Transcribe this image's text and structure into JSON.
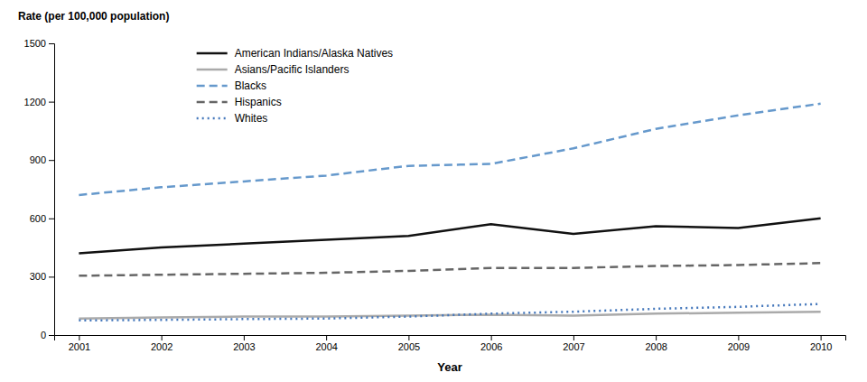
{
  "chart_data": {
    "type": "line",
    "xlabel": "Year",
    "ylabel": "Rate (per 100,000 population)",
    "x": [
      2001,
      2002,
      2003,
      2004,
      2005,
      2006,
      2007,
      2008,
      2009,
      2010
    ],
    "xlim": [
      2000.7,
      2010.3
    ],
    "xticks": [
      2001,
      2002,
      2003,
      2004,
      2005,
      2006,
      2007,
      2008,
      2009,
      2010
    ],
    "ylim": [
      0,
      1500
    ],
    "yticks": [
      0,
      300,
      600,
      900,
      1200,
      1500
    ],
    "grid": false,
    "legend": "upper left",
    "series": [
      {
        "name": "American Indians/Alaska Natives",
        "color": "#111111",
        "line_style": "solid",
        "values": [
          420,
          450,
          470,
          490,
          510,
          570,
          520,
          560,
          550,
          600
        ]
      },
      {
        "name": "Asians/Pacific Islanders",
        "color": "#aaaaaa",
        "line_style": "solid",
        "values": [
          85,
          90,
          95,
          95,
          100,
          105,
          100,
          110,
          115,
          120
        ]
      },
      {
        "name": "Blacks",
        "color": "#6699cc",
        "line_style": "dashed",
        "values": [
          720,
          760,
          790,
          820,
          870,
          880,
          960,
          1060,
          1130,
          1190
        ]
      },
      {
        "name": "Hispanics",
        "color": "#666666",
        "line_style": "dashed",
        "values": [
          305,
          310,
          315,
          320,
          330,
          345,
          345,
          355,
          360,
          370
        ]
      },
      {
        "name": "Whites",
        "color": "#4477bb",
        "line_style": "dotted",
        "values": [
          75,
          78,
          82,
          85,
          95,
          110,
          120,
          135,
          145,
          160
        ]
      }
    ]
  }
}
